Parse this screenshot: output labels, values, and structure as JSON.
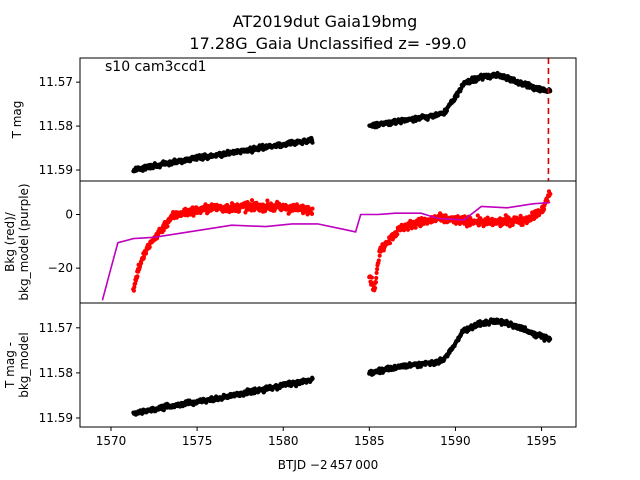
{
  "figure": {
    "title_line1": "AT2019dut  Gaia19bmg",
    "title_line2": "17.28G_Gaia Unclassified z= -99.0",
    "xlabel": "BTJD −2 457 000",
    "xticks": [
      "1570",
      "1575",
      "1580",
      "1585",
      "1590",
      "1595"
    ],
    "colors": {
      "flux": "#000000",
      "bkg": "#ff0000",
      "bkg_model": "#bf00bf",
      "event_line": "#dd0000"
    }
  },
  "chart_data": [
    {
      "type": "scatter",
      "panel": "top",
      "annotation": "s10 cam3ccd1",
      "ylabel": "T mag",
      "yticks": [
        "11.57",
        "11.58",
        "11.59"
      ],
      "y_inverted": true,
      "xlim": [
        1568.2,
        1597.0
      ],
      "ylim": [
        11.5925,
        11.5645
      ],
      "event_line_x": 1595.4,
      "series": [
        {
          "segments": [
            {
              "x0": 1571.3,
              "x1": 1581.7,
              "points": [
                [
                  1571.3,
                  11.59
                ],
                [
                  1574.0,
                  11.5879
                ],
                [
                  1576.5,
                  11.5864
                ],
                [
                  1579.0,
                  11.5848
                ],
                [
                  1581.7,
                  11.5832
                ]
              ]
            },
            {
              "x0": 1585.0,
              "x1": 1595.5,
              "points": [
                [
                  1585.0,
                  11.58
                ],
                [
                  1587.0,
                  11.5786
                ],
                [
                  1588.6,
                  11.5778
                ],
                [
                  1589.3,
                  11.5772
                ],
                [
                  1589.9,
                  11.574
                ],
                [
                  1590.5,
                  11.5702
                ],
                [
                  1591.5,
                  11.5688
                ],
                [
                  1592.5,
                  11.5684
                ],
                [
                  1593.5,
                  11.5698
                ],
                [
                  1594.5,
                  11.5712
                ],
                [
                  1595.5,
                  11.5722
                ]
              ]
            }
          ]
        }
      ]
    },
    {
      "type": "line+scatter",
      "panel": "middle",
      "ylabel": "Bkg (red)/\nbkg_model (purple)",
      "yticks": [
        "0",
        "−20"
      ],
      "xlim": [
        1568.2,
        1597.0
      ],
      "ylim": [
        -33.0,
        12.5
      ],
      "series": [
        {
          "name": "Bkg (red)",
          "segments": [
            {
              "x0": 1571.3,
              "x1": 1581.7,
              "points": [
                [
                  1571.3,
                  -28.0
                ],
                [
                  1571.6,
                  -20.0
                ],
                [
                  1572.0,
                  -14.0
                ],
                [
                  1572.5,
                  -9.0
                ],
                [
                  1573.0,
                  -5.0
                ],
                [
                  1573.5,
                  -1.0
                ],
                [
                  1574.0,
                  0.5
                ],
                [
                  1575.0,
                  1.5
                ],
                [
                  1576.0,
                  2.5
                ],
                [
                  1577.0,
                  2.5
                ],
                [
                  1578.0,
                  3.0
                ],
                [
                  1579.0,
                  3.0
                ],
                [
                  1580.0,
                  2.5
                ],
                [
                  1581.0,
                  2.0
                ],
                [
                  1581.7,
                  2.0
                ]
              ]
            },
            {
              "x0": 1585.0,
              "x1": 1595.5,
              "points": [
                [
                  1585.0,
                  -23.0
                ],
                [
                  1585.3,
                  -28.0
                ],
                [
                  1585.6,
                  -14.0
                ],
                [
                  1586.0,
                  -10.0
                ],
                [
                  1586.5,
                  -7.0
                ],
                [
                  1587.0,
                  -4.5
                ],
                [
                  1588.0,
                  -3.0
                ],
                [
                  1589.0,
                  -1.5
                ],
                [
                  1590.0,
                  -2.0
                ],
                [
                  1591.0,
                  -2.5
                ],
                [
                  1592.0,
                  -3.0
                ],
                [
                  1593.0,
                  -2.5
                ],
                [
                  1594.0,
                  -2.0
                ],
                [
                  1595.0,
                  1.0
                ],
                [
                  1595.5,
                  8.0
                ]
              ]
            }
          ]
        },
        {
          "name": "bkg_model (purple)",
          "points": [
            [
              1569.5,
              -32.0
            ],
            [
              1570.0,
              -20.0
            ],
            [
              1570.4,
              -10.5
            ],
            [
              1571.3,
              -9.0
            ],
            [
              1572.5,
              -8.5
            ],
            [
              1574.0,
              -7.0
            ],
            [
              1576.0,
              -5.0
            ],
            [
              1577.0,
              -4.0
            ],
            [
              1579.0,
              -4.5
            ],
            [
              1580.5,
              -3.5
            ],
            [
              1582.0,
              -3.5
            ],
            [
              1583.5,
              -5.5
            ],
            [
              1584.2,
              -6.5
            ],
            [
              1584.5,
              0.0
            ],
            [
              1585.5,
              0.0
            ],
            [
              1586.5,
              0.5
            ],
            [
              1588.0,
              0.5
            ],
            [
              1589.0,
              -1.5
            ],
            [
              1590.5,
              -2.0
            ],
            [
              1591.5,
              3.0
            ],
            [
              1593.0,
              2.5
            ],
            [
              1594.5,
              4.0
            ],
            [
              1595.5,
              4.5
            ]
          ]
        }
      ]
    },
    {
      "type": "scatter",
      "panel": "bottom",
      "ylabel": "T mag -\nbkg_model",
      "yticks": [
        "11.57",
        "11.58",
        "11.59"
      ],
      "y_inverted": true,
      "xlim": [
        1568.2,
        1597.0
      ],
      "ylim": [
        11.592,
        11.5645
      ],
      "series": [
        {
          "segments": [
            {
              "x0": 1571.3,
              "x1": 1581.7,
              "points": [
                [
                  1571.3,
                  11.589
                ],
                [
                  1574.0,
                  11.587
                ],
                [
                  1576.5,
                  11.5855
                ],
                [
                  1579.0,
                  11.5835
                ],
                [
                  1581.7,
                  11.5815
                ]
              ]
            },
            {
              "x0": 1585.0,
              "x1": 1595.5,
              "points": [
                [
                  1585.0,
                  11.58
                ],
                [
                  1587.0,
                  11.5785
                ],
                [
                  1588.6,
                  11.5778
                ],
                [
                  1589.3,
                  11.5772
                ],
                [
                  1589.9,
                  11.574
                ],
                [
                  1590.5,
                  11.5705
                ],
                [
                  1591.5,
                  11.569
                ],
                [
                  1592.5,
                  11.5685
                ],
                [
                  1593.5,
                  11.5696
                ],
                [
                  1594.5,
                  11.5712
                ],
                [
                  1595.5,
                  11.5725
                ]
              ]
            }
          ]
        }
      ]
    }
  ]
}
